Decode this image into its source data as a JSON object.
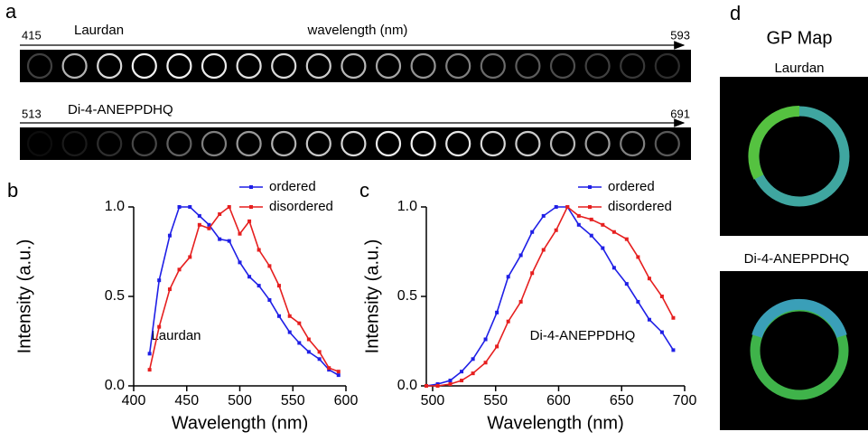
{
  "panels": {
    "a": {
      "label": "a",
      "strips": [
        {
          "start": "415",
          "name": "Laurdan",
          "axis_label": "wavelength (nm)",
          "end": "593"
        },
        {
          "start": "513",
          "name": "Di-4-ANEPPDHQ",
          "end": "691"
        }
      ]
    },
    "d": {
      "label": "d",
      "title": "GP Map",
      "maps": [
        "Laurdan",
        "Di-4-ANEPPDHQ"
      ]
    }
  },
  "chart_data": [
    {
      "type": "line",
      "label": "b",
      "annotation": "Laurdan",
      "x_label": "Wavelength (nm)",
      "y_label": "Intensity (a.u.)",
      "x": [
        415,
        424,
        434,
        443,
        453,
        462,
        471,
        481,
        490,
        500,
        509,
        518,
        528,
        537,
        547,
        556,
        565,
        575,
        584,
        593
      ],
      "series": [
        {
          "name": "ordered",
          "color": "#1f1fe6",
          "values": [
            0.18,
            0.59,
            0.84,
            1.0,
            1.0,
            0.95,
            0.9,
            0.82,
            0.81,
            0.69,
            0.61,
            0.56,
            0.48,
            0.39,
            0.3,
            0.24,
            0.19,
            0.15,
            0.09,
            0.06
          ]
        },
        {
          "name": "disordered",
          "color": "#e61f1f",
          "values": [
            0.09,
            0.33,
            0.54,
            0.65,
            0.72,
            0.9,
            0.88,
            0.96,
            1.0,
            0.85,
            0.92,
            0.76,
            0.67,
            0.56,
            0.39,
            0.35,
            0.26,
            0.19,
            0.1,
            0.08
          ]
        }
      ],
      "xlim": [
        400,
        600
      ],
      "xticks": [
        400,
        450,
        500,
        550,
        600
      ],
      "ylim": [
        0,
        1
      ],
      "yticks": [
        {
          "value": 0,
          "label": "0.0"
        },
        0.5,
        {
          "value": 1,
          "label": "1.0"
        }
      ],
      "legend": "upper right"
    },
    {
      "type": "line",
      "label": "c",
      "annotation": "Di-4-ANEPPDHQ",
      "x_label": "Wavelength (nm)",
      "y_label": "Intensity (a.u.)",
      "x": [
        495,
        504,
        514,
        523,
        532,
        542,
        551,
        560,
        570,
        579,
        588,
        598,
        607,
        616,
        626,
        635,
        644,
        654,
        663,
        672,
        682,
        691
      ],
      "series": [
        {
          "name": "ordered",
          "color": "#1f1fe6",
          "values": [
            0,
            0.01,
            0.03,
            0.08,
            0.15,
            0.26,
            0.41,
            0.61,
            0.73,
            0.86,
            0.95,
            1.0,
            1.0,
            0.9,
            0.84,
            0.77,
            0.66,
            0.57,
            0.47,
            0.37,
            0.3,
            0.2
          ]
        },
        {
          "name": "disordered",
          "color": "#e61f1f",
          "values": [
            0,
            0,
            0.01,
            0.03,
            0.07,
            0.13,
            0.22,
            0.36,
            0.47,
            0.63,
            0.76,
            0.87,
            1.0,
            0.95,
            0.93,
            0.9,
            0.86,
            0.82,
            0.72,
            0.6,
            0.5,
            0.38
          ]
        }
      ],
      "xlim": [
        495,
        700
      ],
      "xticks": [
        500,
        550,
        600,
        650,
        700
      ],
      "ylim": [
        0,
        1
      ],
      "yticks": [
        {
          "value": 0,
          "label": "0.0"
        },
        0.5,
        {
          "value": 1,
          "label": "1.0"
        }
      ],
      "legend": "upper right"
    }
  ]
}
